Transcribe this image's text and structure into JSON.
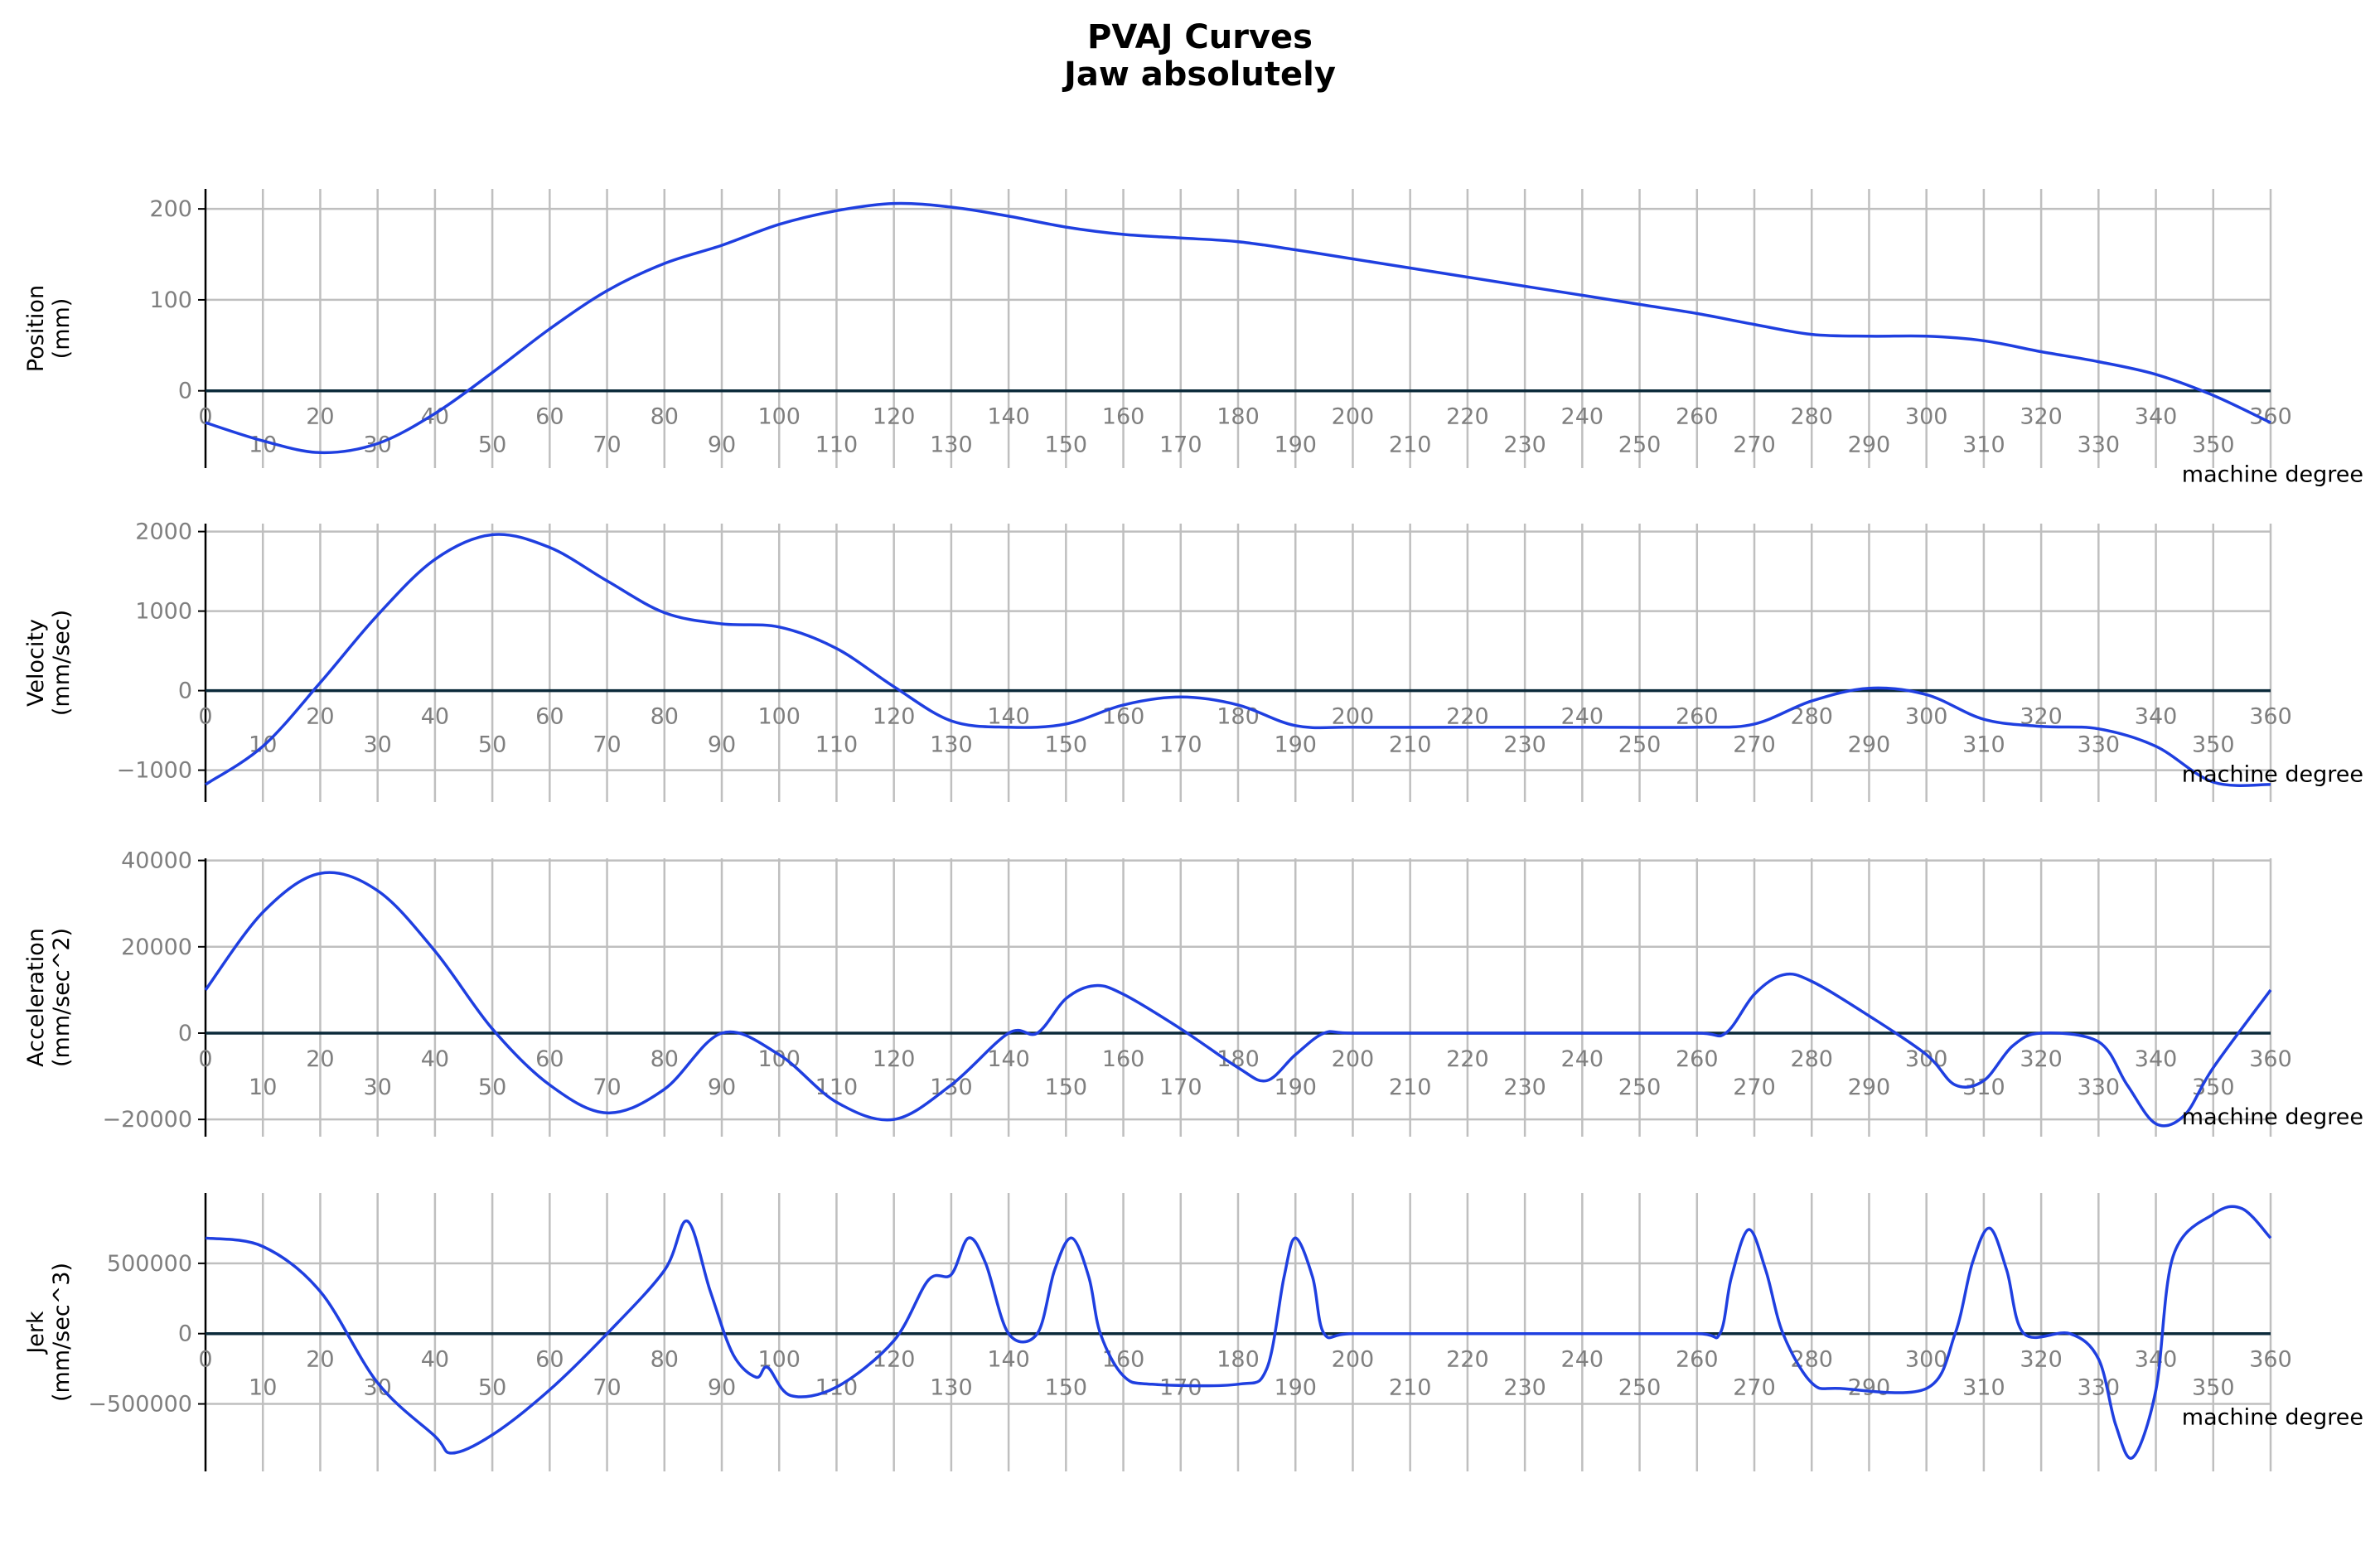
{
  "chart_data": {
    "type": "line",
    "title_lines": [
      "PVAJ Curves",
      "Jaw absolutely"
    ],
    "line_color": "#1f3fe0",
    "grid_color": "#bfbfbf",
    "zero_line_color": "#0b2a3a",
    "tick_label_color": "#7f7f7f",
    "grid": true,
    "xlim": [
      0,
      360
    ],
    "x_ticks_upper": [
      0,
      20,
      40,
      60,
      80,
      100,
      120,
      140,
      160,
      180,
      200,
      220,
      240,
      260,
      280,
      300,
      320,
      340,
      360
    ],
    "x_ticks_lower": [
      10,
      30,
      50,
      70,
      90,
      110,
      130,
      150,
      170,
      190,
      210,
      230,
      250,
      270,
      290,
      310,
      330,
      350
    ],
    "panels": [
      {
        "id": "position",
        "ylabel_lines": [
          "Position",
          "(mm)"
        ],
        "xlabel": "machine degree",
        "ylim": [
          -85,
          222
        ],
        "yticks": [
          0,
          100,
          200
        ],
        "ytick_labels": [
          "0",
          "100",
          "200"
        ],
        "points": [
          [
            0,
            -35
          ],
          [
            10,
            -55
          ],
          [
            20,
            -68
          ],
          [
            30,
            -58
          ],
          [
            40,
            -25
          ],
          [
            50,
            20
          ],
          [
            60,
            68
          ],
          [
            70,
            110
          ],
          [
            80,
            140
          ],
          [
            90,
            160
          ],
          [
            100,
            183
          ],
          [
            110,
            198
          ],
          [
            120,
            206
          ],
          [
            130,
            202
          ],
          [
            140,
            192
          ],
          [
            150,
            180
          ],
          [
            160,
            172
          ],
          [
            170,
            168
          ],
          [
            180,
            164
          ],
          [
            190,
            155
          ],
          [
            200,
            145
          ],
          [
            210,
            135
          ],
          [
            220,
            125
          ],
          [
            230,
            115
          ],
          [
            240,
            105
          ],
          [
            250,
            95
          ],
          [
            260,
            85
          ],
          [
            270,
            73
          ],
          [
            280,
            62
          ],
          [
            290,
            60
          ],
          [
            300,
            60
          ],
          [
            310,
            55
          ],
          [
            320,
            43
          ],
          [
            330,
            32
          ],
          [
            340,
            18
          ],
          [
            350,
            -5
          ],
          [
            360,
            -35
          ]
        ]
      },
      {
        "id": "velocity",
        "ylabel_lines": [
          "Velocity",
          "(mm/sec)"
        ],
        "xlabel": "machine degree",
        "ylim": [
          -1400,
          2100
        ],
        "yticks": [
          -1000,
          0,
          1000,
          2000
        ],
        "ytick_labels": [
          "−1000",
          "0",
          "1000",
          "2000"
        ],
        "points": [
          [
            0,
            -1180
          ],
          [
            10,
            -700
          ],
          [
            20,
            100
          ],
          [
            30,
            950
          ],
          [
            40,
            1650
          ],
          [
            50,
            1960
          ],
          [
            60,
            1800
          ],
          [
            70,
            1380
          ],
          [
            80,
            980
          ],
          [
            90,
            840
          ],
          [
            100,
            800
          ],
          [
            110,
            530
          ],
          [
            120,
            50
          ],
          [
            130,
            -380
          ],
          [
            140,
            -460
          ],
          [
            150,
            -420
          ],
          [
            160,
            -180
          ],
          [
            170,
            -80
          ],
          [
            180,
            -180
          ],
          [
            190,
            -440
          ],
          [
            200,
            -460
          ],
          [
            220,
            -460
          ],
          [
            240,
            -460
          ],
          [
            260,
            -460
          ],
          [
            270,
            -420
          ],
          [
            280,
            -130
          ],
          [
            290,
            30
          ],
          [
            300,
            -50
          ],
          [
            310,
            -360
          ],
          [
            320,
            -450
          ],
          [
            330,
            -480
          ],
          [
            340,
            -700
          ],
          [
            350,
            -1150
          ],
          [
            360,
            -1180
          ]
        ]
      },
      {
        "id": "acceleration",
        "ylabel_lines": [
          "Acceleration",
          "(mm/sec^2)"
        ],
        "xlabel": "machine degree",
        "ylim": [
          -24000,
          40500
        ],
        "yticks": [
          -20000,
          0,
          20000,
          40000
        ],
        "ytick_labels": [
          "−20000",
          "0",
          "20000",
          "40000"
        ],
        "points": [
          [
            0,
            10000
          ],
          [
            10,
            28000
          ],
          [
            20,
            37000
          ],
          [
            30,
            33000
          ],
          [
            40,
            19000
          ],
          [
            50,
            1000
          ],
          [
            60,
            -12000
          ],
          [
            70,
            -18500
          ],
          [
            80,
            -13000
          ],
          [
            90,
            0
          ],
          [
            100,
            -5000
          ],
          [
            110,
            -16000
          ],
          [
            120,
            -20000
          ],
          [
            130,
            -12000
          ],
          [
            140,
            0
          ],
          [
            145,
            0
          ],
          [
            150,
            8000
          ],
          [
            155,
            11000
          ],
          [
            160,
            9000
          ],
          [
            170,
            1000
          ],
          [
            180,
            -8000
          ],
          [
            185,
            -11000
          ],
          [
            190,
            -5000
          ],
          [
            195,
            0
          ],
          [
            200,
            0
          ],
          [
            220,
            0
          ],
          [
            240,
            0
          ],
          [
            260,
            0
          ],
          [
            265,
            0
          ],
          [
            270,
            9000
          ],
          [
            275,
            13500
          ],
          [
            280,
            12000
          ],
          [
            290,
            4000
          ],
          [
            300,
            -5000
          ],
          [
            305,
            -12000
          ],
          [
            310,
            -11000
          ],
          [
            315,
            -3000
          ],
          [
            320,
            0
          ],
          [
            330,
            -2000
          ],
          [
            335,
            -12000
          ],
          [
            340,
            -21000
          ],
          [
            345,
            -19000
          ],
          [
            350,
            -8000
          ],
          [
            360,
            10000
          ]
        ]
      },
      {
        "id": "jerk",
        "ylabel_lines": [
          "Jerk",
          "(mm/sec^3)"
        ],
        "xlabel": "machine degree",
        "ylim": [
          -980000,
          1000000
        ],
        "yticks": [
          -500000,
          0,
          500000
        ],
        "ytick_labels": [
          "−500000",
          "0",
          "500000"
        ],
        "points": [
          [
            0,
            680000
          ],
          [
            10,
            620000
          ],
          [
            20,
            300000
          ],
          [
            30,
            -350000
          ],
          [
            40,
            -730000
          ],
          [
            43,
            -850000
          ],
          [
            50,
            -720000
          ],
          [
            60,
            -400000
          ],
          [
            70,
            0
          ],
          [
            80,
            450000
          ],
          [
            84,
            800000
          ],
          [
            88,
            300000
          ],
          [
            92,
            -150000
          ],
          [
            96,
            -310000
          ],
          [
            98,
            -240000
          ],
          [
            102,
            -440000
          ],
          [
            110,
            -380000
          ],
          [
            120,
            -50000
          ],
          [
            126,
            380000
          ],
          [
            130,
            420000
          ],
          [
            133,
            680000
          ],
          [
            136,
            500000
          ],
          [
            140,
            0
          ],
          [
            145,
            0
          ],
          [
            148,
            450000
          ],
          [
            151,
            680000
          ],
          [
            154,
            400000
          ],
          [
            156,
            0
          ],
          [
            160,
            -300000
          ],
          [
            165,
            -360000
          ],
          [
            180,
            -360000
          ],
          [
            185,
            -250000
          ],
          [
            188,
            400000
          ],
          [
            190,
            680000
          ],
          [
            193,
            400000
          ],
          [
            195,
            0
          ],
          [
            200,
            0
          ],
          [
            220,
            0
          ],
          [
            240,
            0
          ],
          [
            260,
            0
          ],
          [
            264,
            0
          ],
          [
            266,
            400000
          ],
          [
            269,
            740000
          ],
          [
            272,
            450000
          ],
          [
            275,
            0
          ],
          [
            280,
            -350000
          ],
          [
            285,
            -390000
          ],
          [
            300,
            -390000
          ],
          [
            305,
            0
          ],
          [
            308,
            500000
          ],
          [
            311,
            750000
          ],
          [
            314,
            450000
          ],
          [
            317,
            0
          ],
          [
            325,
            0
          ],
          [
            330,
            -180000
          ],
          [
            333,
            -650000
          ],
          [
            336,
            -880000
          ],
          [
            340,
            -400000
          ],
          [
            343,
            550000
          ],
          [
            350,
            850000
          ],
          [
            355,
            890000
          ],
          [
            360,
            680000
          ]
        ]
      }
    ]
  }
}
